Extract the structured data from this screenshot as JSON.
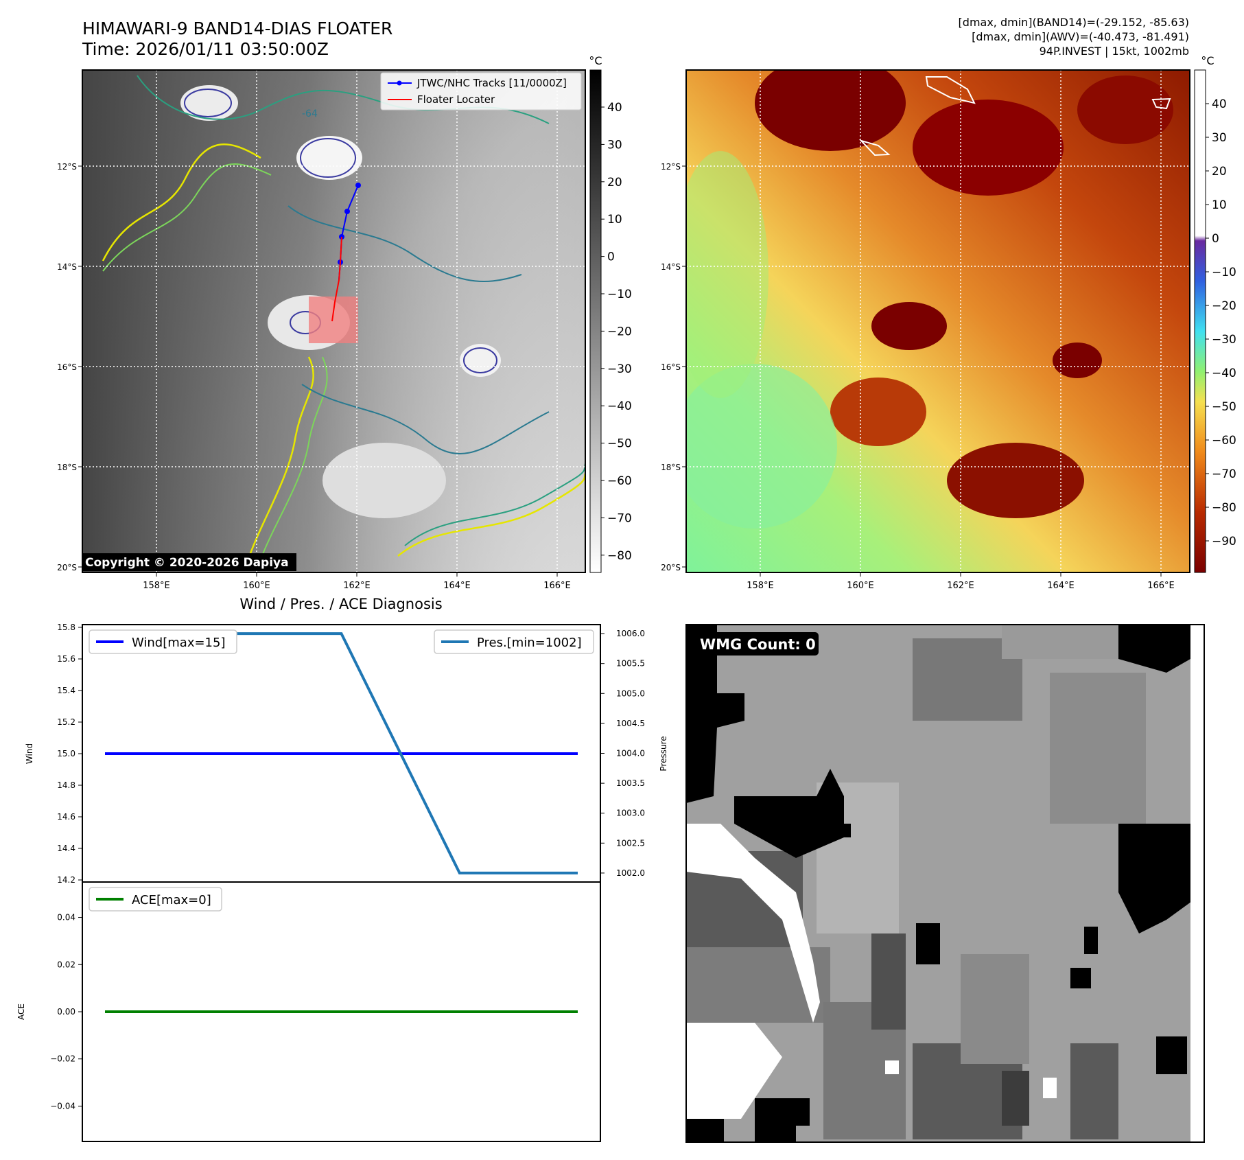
{
  "header": {
    "title_line1": "HIMAWARI-9 BAND14-DIAS FLOATER",
    "title_line2": "Time: 2026/01/11 03:50:00Z",
    "info_line1": "[dmax, dmin](BAND14)=(-29.152, -85.63)",
    "info_line2": "[dmax, dmin](AWV)=(-40.473, -81.491)",
    "info_line3": "94P.INVEST | 15kt, 1002mb"
  },
  "copyright": "Copyright © 2020-2026 Dapiya",
  "colors": {
    "track": "#0000ff",
    "floater": "#ff0000",
    "wind": "#0000ff",
    "pressure": "#1f77b4",
    "ace": "#008000",
    "floater_box": "#f08080"
  },
  "map_axes": {
    "lon_ticks": [
      "158°E",
      "160°E",
      "162°E",
      "164°E",
      "166°E"
    ],
    "lat_ticks": [
      "12°S",
      "14°S",
      "16°S",
      "18°S",
      "20°S"
    ]
  },
  "ir_panel": {
    "legend": [
      "JTWC/NHC Tracks [11/0000Z]",
      "Floater Locater"
    ],
    "colorbar_unit": "°C",
    "colorbar_ticks": [
      "40",
      "30",
      "20",
      "10",
      "0",
      "−10",
      "−20",
      "−30",
      "−40",
      "−50",
      "−60",
      "−70",
      "−80"
    ],
    "contour_label": "-64"
  },
  "wv_panel": {
    "colorbar_unit": "°C",
    "colorbar_ticks": [
      "40",
      "30",
      "20",
      "10",
      "0",
      "−10",
      "−20",
      "−30",
      "−40",
      "−50",
      "−60",
      "−70",
      "−80",
      "−90"
    ]
  },
  "wmg_panel": {
    "label": "WMG Count: 0"
  },
  "chart_data": [
    {
      "type": "line",
      "title": "Wind / Pres. / ACE Diagnosis",
      "ylabel": "Wind",
      "ylim": [
        14.2,
        15.8
      ],
      "yticks": [
        "14.2",
        "14.4",
        "14.6",
        "14.8",
        "15.0",
        "15.2",
        "15.4",
        "15.6",
        "15.8"
      ],
      "legend_location": "upper left",
      "series": [
        {
          "name": "Wind[max=15]",
          "x": [
            0,
            1,
            2,
            3,
            4
          ],
          "values": [
            15,
            15,
            15,
            15,
            15
          ]
        }
      ]
    },
    {
      "type": "line",
      "ylabel": "Pressure",
      "ylim": [
        1001.85,
        1006.15
      ],
      "yticks": [
        "1002.0",
        "1002.5",
        "1003.0",
        "1003.5",
        "1004.0",
        "1004.5",
        "1005.0",
        "1005.5",
        "1006.0"
      ],
      "legend_location": "upper right",
      "series": [
        {
          "name": "Pres.[min=1002]",
          "x": [
            0,
            1,
            2,
            3,
            4
          ],
          "values": [
            1006,
            1006,
            1006,
            1002,
            1002
          ]
        }
      ]
    },
    {
      "type": "line",
      "ylabel": "ACE",
      "ylim": [
        -0.055,
        0.055
      ],
      "yticks": [
        "−0.04",
        "−0.02",
        "0.00",
        "0.02",
        "0.04"
      ],
      "legend_location": "upper left",
      "series": [
        {
          "name": "ACE[max=0]",
          "x": [
            0,
            1,
            2,
            3,
            4
          ],
          "values": [
            0,
            0,
            0,
            0,
            0
          ]
        }
      ]
    }
  ]
}
